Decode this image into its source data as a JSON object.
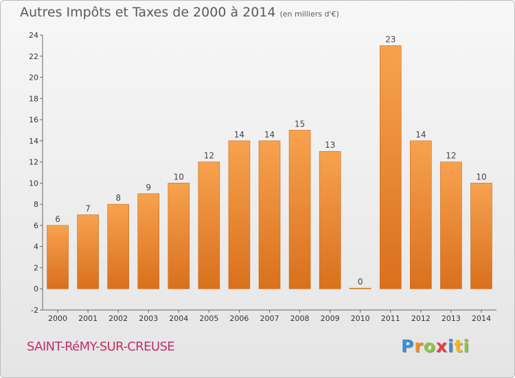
{
  "chart_data": {
    "type": "bar",
    "title": "Autres Impôts et Taxes de 2000 à 2014",
    "unit": "(en milliers d'€)",
    "categories": [
      "2000",
      "2001",
      "2002",
      "2003",
      "2004",
      "2005",
      "2006",
      "2007",
      "2008",
      "2009",
      "2010",
      "2011",
      "2012",
      "2013",
      "2014"
    ],
    "values": [
      6,
      7,
      8,
      9,
      10,
      12,
      14,
      14,
      15,
      13,
      0,
      23,
      14,
      12,
      10
    ],
    "ylim": [
      -2,
      24
    ],
    "yticks": [
      -2,
      0,
      2,
      4,
      6,
      8,
      10,
      12,
      14,
      16,
      18,
      20,
      22,
      24
    ],
    "grid": false,
    "bar_color": "#f0953e"
  },
  "commune": "SAINT-RéMY-SUR-CREUSE",
  "logo": {
    "letters": [
      "P",
      "r",
      "o",
      "x",
      "i",
      "t",
      "i"
    ],
    "colors": [
      "#3a8fd8",
      "#f28c1e",
      "#8cc63e",
      "#e8403c",
      "#3a8fd8",
      "#f2b81e",
      "#8cc63e"
    ]
  }
}
